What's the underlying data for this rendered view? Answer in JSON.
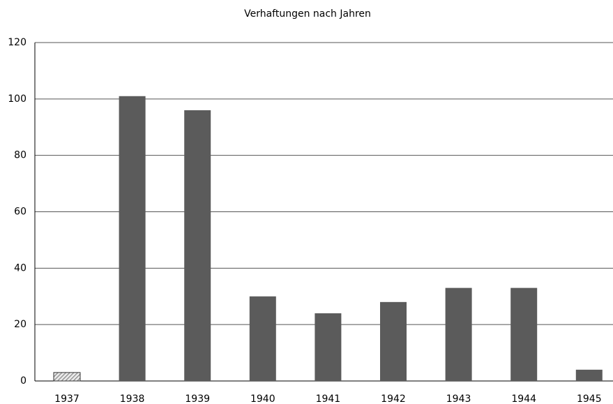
{
  "chart_data": {
    "type": "bar",
    "title": "Verhaftungen nach Jahren",
    "categories": [
      "1937",
      "1938",
      "1939",
      "1940",
      "1941",
      "1942",
      "1943",
      "1944",
      "1945"
    ],
    "values": [
      3,
      101,
      96,
      30,
      24,
      28,
      33,
      33,
      4
    ],
    "color": "#5b5b5b",
    "hatched": [
      true,
      false,
      false,
      false,
      false,
      false,
      false,
      false,
      false
    ],
    "ylim": [
      0,
      120
    ],
    "yticks": [
      0,
      20,
      40,
      60,
      80,
      100,
      120
    ],
    "grid": true
  }
}
